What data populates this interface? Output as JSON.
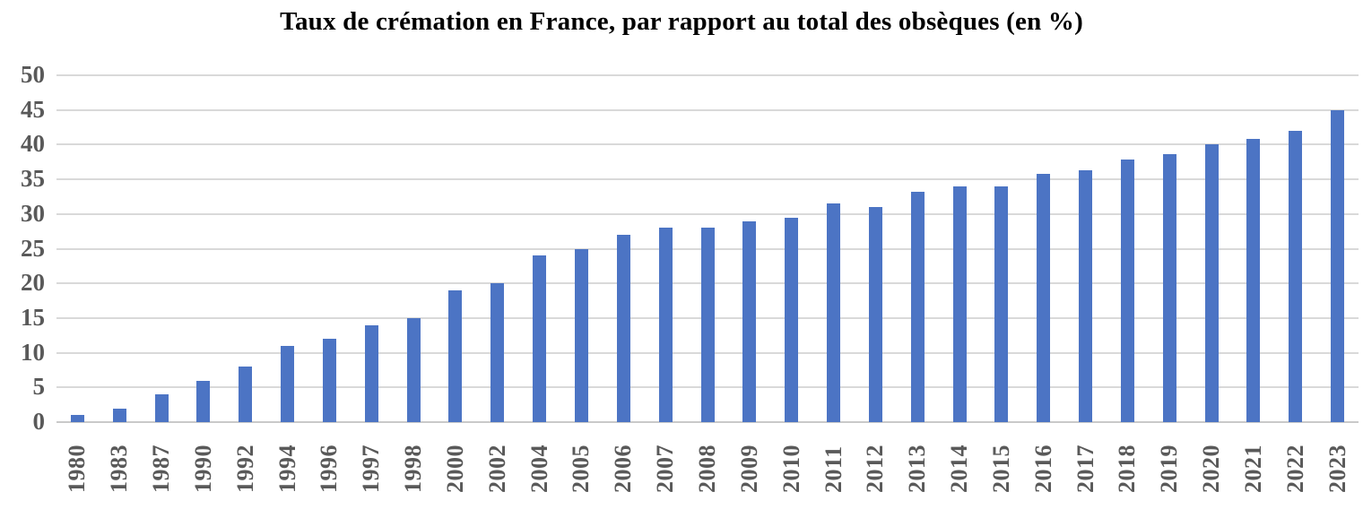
{
  "chart_data": {
    "type": "bar",
    "title": "Taux de crémation en France, par rapport au total des obsèques (en %)",
    "xlabel": "",
    "ylabel": "",
    "categories": [
      "1980",
      "1983",
      "1987",
      "1990",
      "1992",
      "1994",
      "1996",
      "1997",
      "1998",
      "2000",
      "2002",
      "2004",
      "2005",
      "2006",
      "2007",
      "2008",
      "2009",
      "2010",
      "2011",
      "2012",
      "2013",
      "2014",
      "2015",
      "2016",
      "2017",
      "2018",
      "2019",
      "2020",
      "2021",
      "2022",
      "2023"
    ],
    "values": [
      1,
      2,
      4,
      6,
      8,
      11,
      12,
      14,
      15,
      19,
      20,
      24,
      25,
      27,
      28,
      28,
      29,
      29.5,
      31.5,
      31,
      33.2,
      34,
      34,
      35.8,
      36.3,
      37.8,
      38.6,
      40,
      40.8,
      42,
      44.9
    ],
    "ylim": [
      0,
      50
    ],
    "ytick_step": 5,
    "yticks": [
      0,
      5,
      10,
      15,
      20,
      25,
      30,
      35,
      40,
      45,
      50
    ],
    "grid": true,
    "legend": "none",
    "bar_color": "#4C74C4",
    "tick_label_color": "#595959",
    "gridline_color": "#D9D9D9",
    "baseline_color": "#C9C9C9",
    "background_color": "#FFFFFF"
  }
}
